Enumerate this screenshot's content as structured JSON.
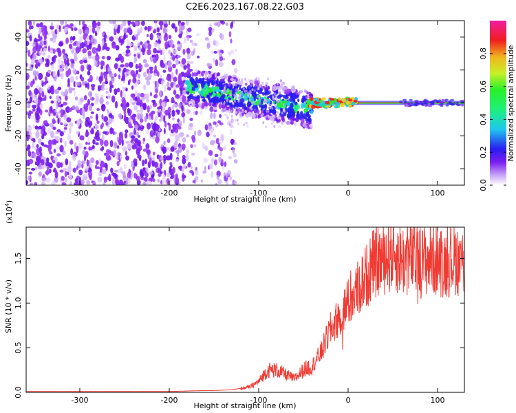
{
  "title": "C2E6.2023.167.08.22.G03",
  "colors": {
    "snr_line": "#f03a32",
    "background": "#ffffff",
    "spectrum_main": "#7a1ef0",
    "spectrum_light": "#c9a6f7"
  },
  "chart_data": [
    {
      "type": "heatmap",
      "title": "C2E6.2023.167.08.22.G03",
      "xlabel": "Height of straight line (km)",
      "ylabel": "Frequency (Hz)",
      "xlim": [
        -360,
        130
      ],
      "ylim": [
        -50,
        50
      ],
      "x_ticks": [
        -300,
        -200,
        -100,
        0,
        100
      ],
      "y_ticks": [
        -40,
        -20,
        0,
        20,
        40
      ],
      "colorbar": {
        "label": "Normalized spectral amplitude",
        "range": [
          0.0,
          1.0
        ],
        "ticks": [
          "0.0",
          "0.2",
          "0.4",
          "0.6",
          "0.8"
        ],
        "colormap": "white-purple-blue-cyan-green-yellow-red-magenta"
      },
      "features": [
        {
          "description": "scattered noise",
          "x_range": [
            -360,
            -130
          ],
          "freq_range": [
            -50,
            50
          ]
        },
        {
          "description": "descending signal",
          "x_range": [
            -180,
            -40
          ],
          "freq_start": 10,
          "freq_end": -5
        },
        {
          "description": "steady carrier",
          "x_range": [
            -40,
            130
          ],
          "freq": 0
        }
      ]
    },
    {
      "type": "line",
      "xlabel": "Height of straight line (km)",
      "ylabel": "SNR (10 * v/v)",
      "y_scale_label": "(x10",
      "y_scale_exp": "4",
      "y_scale_close": ")",
      "xlim": [
        -360,
        130
      ],
      "ylim": [
        0.0,
        1.85
      ],
      "x_ticks": [
        -300,
        -200,
        -100,
        0,
        100
      ],
      "y_ticks": [
        "0.0",
        "0.5",
        "1.0",
        "1.5"
      ],
      "series": [
        {
          "x": [
            -360,
            -200,
            -160,
            -150,
            -130,
            -110,
            -100,
            -90,
            -80,
            -70,
            -60,
            -50,
            -40,
            -30,
            -20,
            -10,
            0,
            10,
            20,
            30,
            40,
            50,
            60,
            70,
            80,
            90,
            100,
            110,
            120,
            130
          ],
          "y": [
            0.01,
            0.01,
            0.02,
            0.02,
            0.03,
            0.06,
            0.12,
            0.25,
            0.25,
            0.2,
            0.15,
            0.25,
            0.3,
            0.45,
            0.7,
            0.85,
            1.0,
            1.15,
            1.3,
            1.45,
            1.5,
            1.55,
            1.48,
            1.5,
            1.45,
            1.5,
            1.48,
            1.45,
            1.5,
            1.45
          ]
        }
      ]
    }
  ]
}
